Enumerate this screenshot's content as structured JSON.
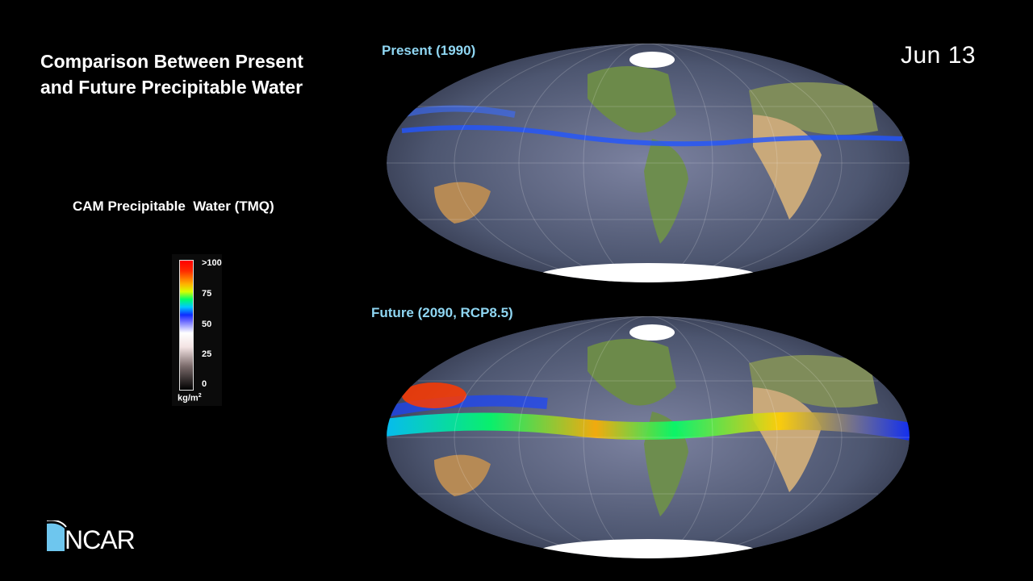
{
  "title": {
    "line1": "Comparison Between Present",
    "line2": "and Future Precipitable Water"
  },
  "date": "Jun  13",
  "legend": {
    "title": "CAM Precipitable  Water (TMQ)",
    "ticks": [
      ">100",
      "75",
      "50",
      "25",
      "0"
    ],
    "unit": "kg/m",
    "unit_exp": "2"
  },
  "panels": {
    "present": {
      "label": "Present (1990)"
    },
    "future": {
      "label": "Future (2090, RCP8.5)"
    }
  },
  "logo": {
    "text": "NCAR"
  },
  "colors": {
    "background": "#000000",
    "panel_label": "#8fd6f2",
    "ocean": "#5b6784",
    "land": "#6c8a4a",
    "desert": "#d8b98b",
    "ice": "#ffffff"
  }
}
